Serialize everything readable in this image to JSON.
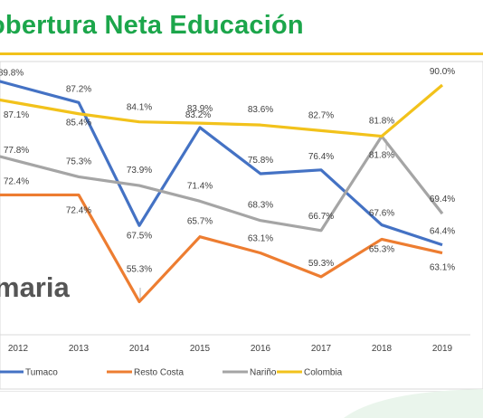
{
  "slide": {
    "title": "obertura Neta Educación",
    "subtitle": "maria"
  },
  "chart_data": {
    "type": "line",
    "x": [
      "2012",
      "2013",
      "2014",
      "2015",
      "2016",
      "2017",
      "2018",
      "2019"
    ],
    "ylim": [
      50,
      95
    ],
    "grid": false,
    "legend": "bottom",
    "series": [
      {
        "name": "Tumaco",
        "color": "#4472c4",
        "values": [
          89.8,
          87.2,
          67.5,
          83.2,
          75.8,
          76.4,
          67.6,
          64.4
        ],
        "labels": [
          "89.8%",
          "87.2%",
          "67.5%",
          "83.2%",
          "75.8%",
          "76.4%",
          "67.6%",
          "64.4%"
        ]
      },
      {
        "name": "Resto Costa",
        "color": "#ed7d31",
        "values": [
          72.4,
          72.4,
          55.3,
          65.7,
          63.1,
          59.3,
          65.3,
          63.1
        ],
        "labels": [
          "72.4%",
          "72.4%",
          "55.3%",
          "65.7%",
          "63.1%",
          "59.3%",
          "65.3%",
          "63.1%"
        ]
      },
      {
        "name": "Nariño",
        "color": "#a5a5a5",
        "values": [
          77.8,
          75.3,
          73.9,
          71.4,
          68.3,
          66.7,
          81.8,
          69.4
        ],
        "labels": [
          "77.8%",
          "75.3%",
          "73.9%",
          "71.4%",
          "68.3%",
          "66.7%",
          "81.8%",
          "69.4%"
        ]
      },
      {
        "name": "Colombia",
        "color": "#f2c21b",
        "values": [
          87.1,
          85.4,
          84.1,
          83.9,
          83.6,
          82.7,
          81.8,
          90.0
        ],
        "labels": [
          "87.1%",
          "85.4%",
          "84.1%",
          "83.9%",
          "83.6%",
          "82.7%",
          "81.8%",
          "90.0%"
        ]
      }
    ]
  }
}
